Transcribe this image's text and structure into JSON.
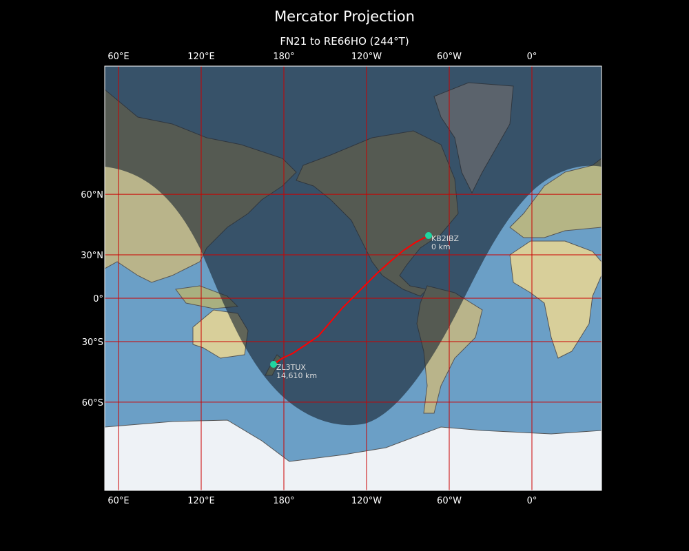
{
  "title": "Mercator Projection",
  "subtitle": "FN21 to RE66HO (244°T)",
  "map": {
    "projection": "Mercator",
    "lon_ticks": [
      {
        "lon": 60,
        "label": "60°E"
      },
      {
        "lon": 120,
        "label": "120°E"
      },
      {
        "lon": 180,
        "label": "180°"
      },
      {
        "lon": -120,
        "label": "120°W"
      },
      {
        "lon": -60,
        "label": "60°W"
      },
      {
        "lon": 0,
        "label": "0°"
      }
    ],
    "lat_ticks": [
      {
        "lat": 60,
        "label": "60°N"
      },
      {
        "lat": 30,
        "label": "30°N"
      },
      {
        "lat": 0,
        "label": "0°"
      },
      {
        "lat": -30,
        "label": "30°S"
      },
      {
        "lat": -60,
        "label": "60°S"
      }
    ],
    "gridline_color": "#cc0000",
    "path_color": "#ff0000",
    "marker_color": "#1fd6a0",
    "night_shading": true,
    "stations": [
      {
        "call": "KB2IBZ",
        "distance": "0 km"
      },
      {
        "call": "ZL3TUX",
        "distance": "14,610 km"
      }
    ]
  }
}
